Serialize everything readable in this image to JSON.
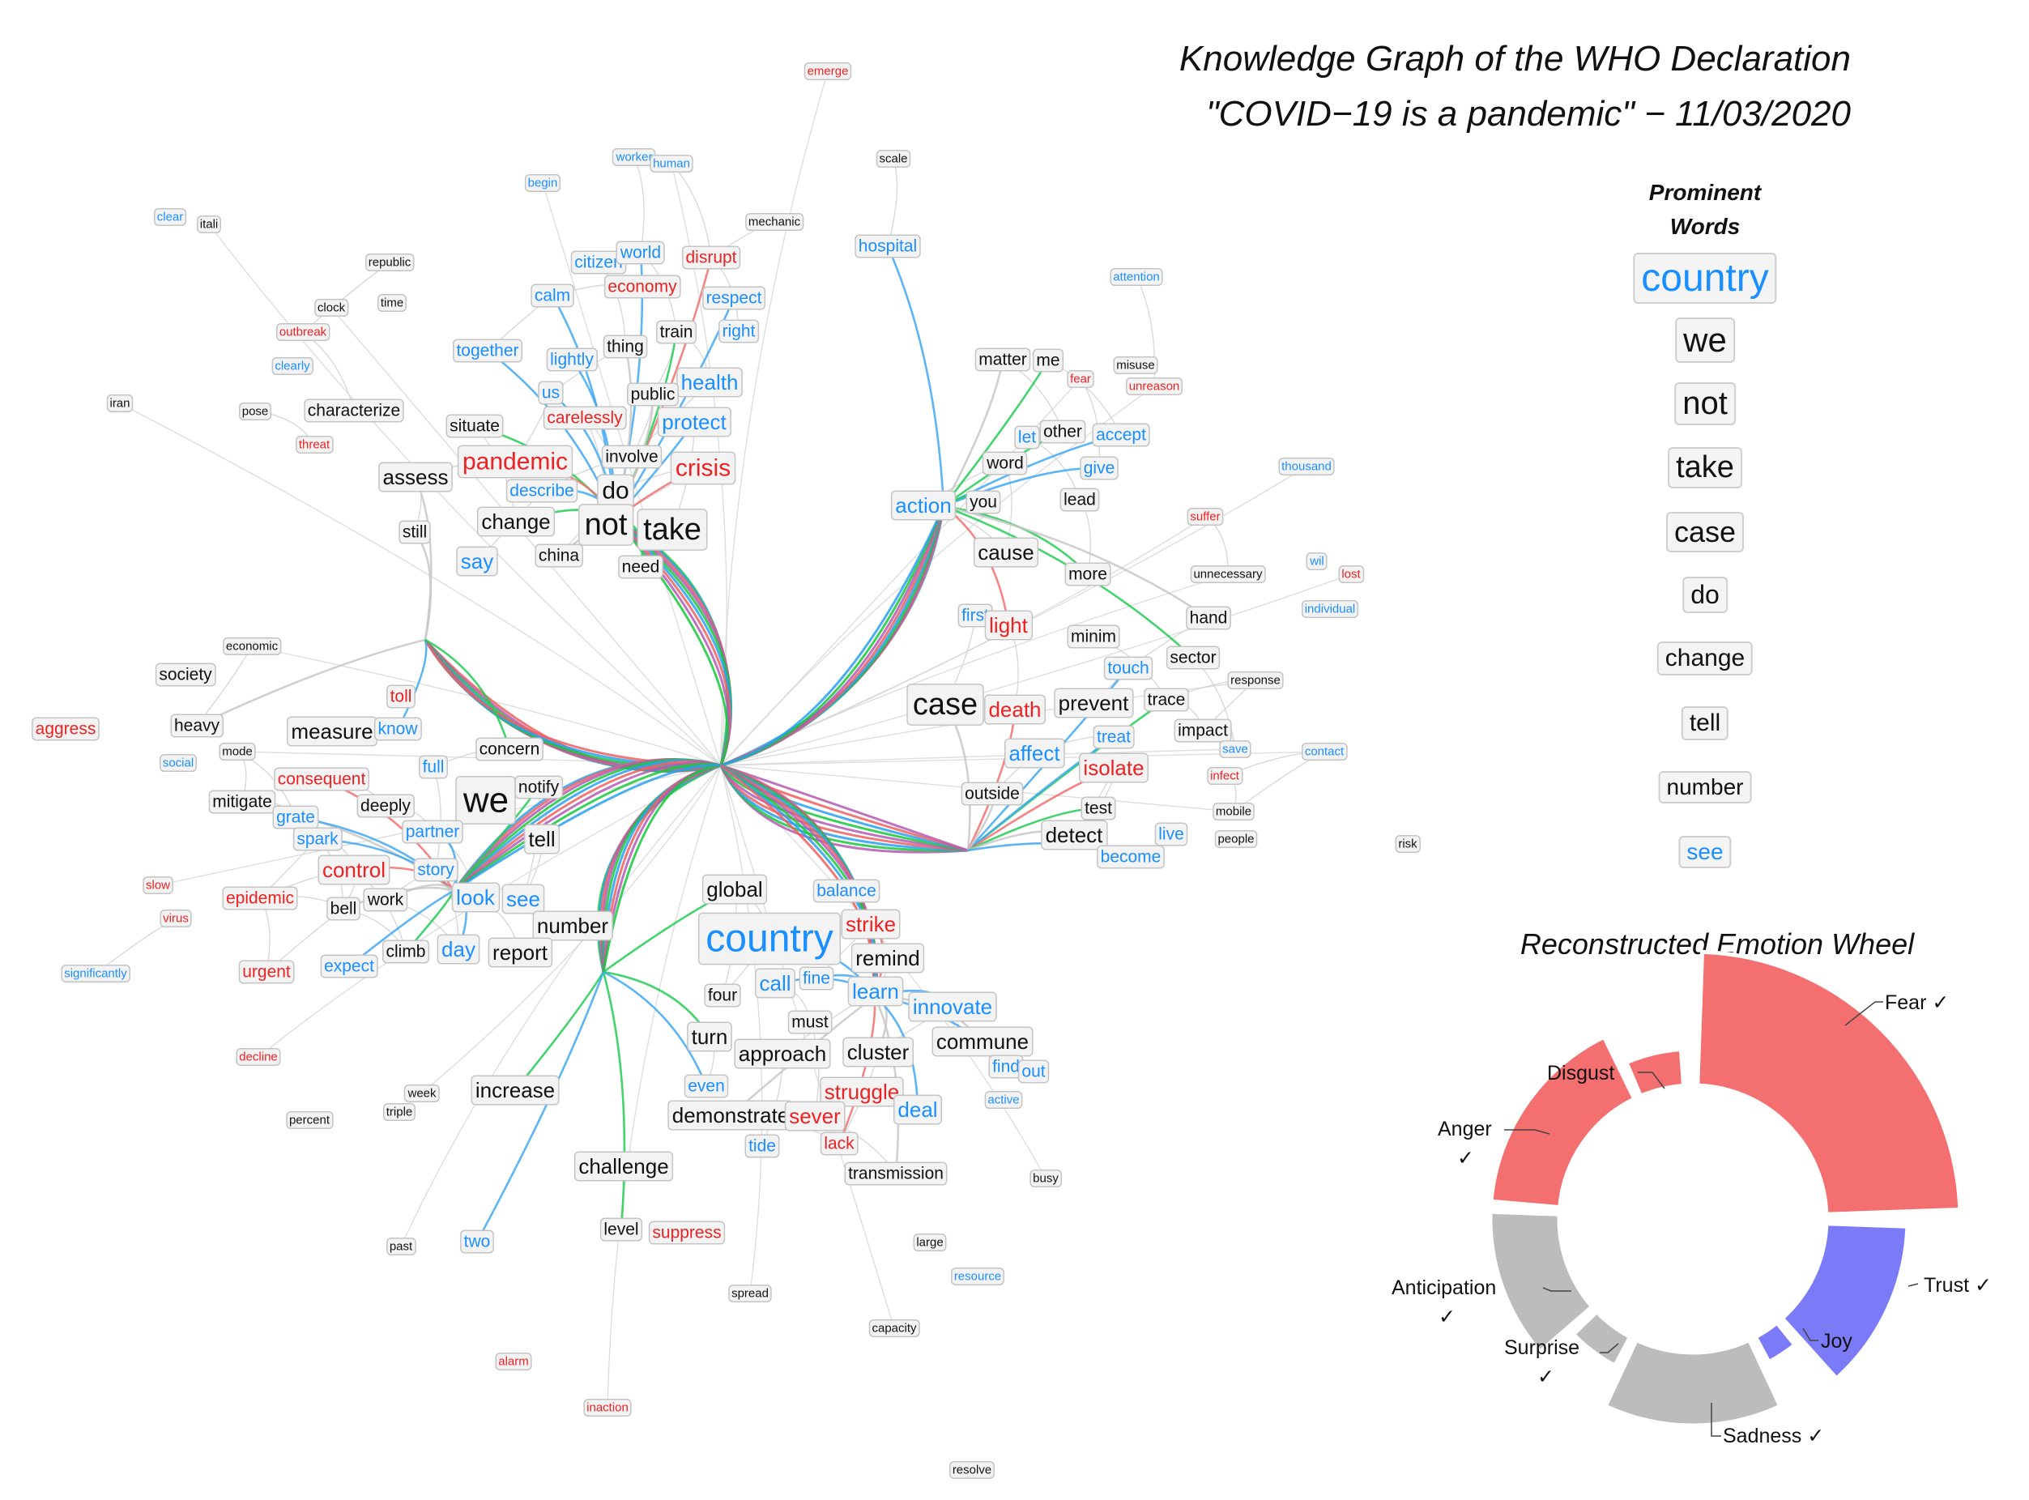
{
  "title_line1": "Knowledge Graph of the WHO Declaration",
  "title_line2": "\"COVID−19 is a pandemic\"  − 11/03/2020",
  "prominent": {
    "heading_line1": "Prominent",
    "heading_line2": "Words",
    "words": [
      "country",
      "we",
      "not",
      "take",
      "case",
      "do",
      "change",
      "tell",
      "number",
      "see"
    ],
    "colors": [
      "#1a8fff",
      "#111111",
      "#111111",
      "#111111",
      "#111111",
      "#111111",
      "#111111",
      "#111111",
      "#111111",
      "#1a8fff"
    ]
  },
  "wheel": {
    "title": "Reconstructed Emotion Wheel",
    "labels": {
      "fear": "Fear ✓",
      "disgust": "Disgust",
      "anger": "Anger",
      "anger_check": "✓",
      "trust": "Trust ✓",
      "joy": "Joy",
      "anticipation": "Anticipation",
      "anticipation_check": "✓",
      "surprise": "Surprise",
      "surprise_check": "✓",
      "sadness": "Sadness ✓"
    },
    "colors": {
      "negative": "#f46f6f",
      "positive": "#7b7bf8",
      "neutral": "#bcbcbc"
    }
  },
  "graph": {
    "colors": {
      "neutral": "#111111",
      "positive": "#1a8fff",
      "negative": "#ee2222"
    },
    "nodes": [
      [
        "emerge",
        "r",
        1022,
        88,
        0
      ],
      [
        "worker",
        "b",
        783,
        194,
        0
      ],
      [
        "human",
        "b",
        829,
        202,
        0
      ],
      [
        "scale",
        "k",
        1103,
        196,
        0
      ],
      [
        "begin",
        "b",
        670,
        226,
        0
      ],
      [
        "clear",
        "b",
        210,
        268,
        0
      ],
      [
        "itali",
        "k",
        258,
        277,
        0
      ],
      [
        "mechanic",
        "k",
        956,
        274,
        0
      ],
      [
        "hospital",
        "b",
        1096,
        304,
        1
      ],
      [
        "republic",
        "k",
        481,
        324,
        0
      ],
      [
        "citizen",
        "b",
        739,
        324,
        1
      ],
      [
        "world",
        "b",
        791,
        312,
        1
      ],
      [
        "disrupt",
        "r",
        878,
        318,
        1
      ],
      [
        "economy",
        "r",
        793,
        354,
        1
      ],
      [
        "respect",
        "b",
        906,
        368,
        1
      ],
      [
        "attention",
        "b",
        1403,
        342,
        0
      ],
      [
        "clock",
        "k",
        409,
        380,
        0
      ],
      [
        "time",
        "k",
        484,
        374,
        0
      ],
      [
        "calm",
        "b",
        682,
        365,
        1
      ],
      [
        "outbreak",
        "r",
        374,
        410,
        0
      ],
      [
        "thing",
        "k",
        772,
        428,
        1
      ],
      [
        "train",
        "k",
        835,
        410,
        1
      ],
      [
        "right",
        "b",
        912,
        409,
        1
      ],
      [
        "together",
        "b",
        602,
        433,
        1
      ],
      [
        "lightly",
        "b",
        706,
        444,
        1
      ],
      [
        "clearly",
        "b",
        361,
        452,
        0
      ],
      [
        "matter",
        "k",
        1238,
        444,
        1
      ],
      [
        "me",
        "k",
        1294,
        445,
        1
      ],
      [
        "fear",
        "r",
        1334,
        468,
        0
      ],
      [
        "misuse",
        "k",
        1402,
        451,
        0
      ],
      [
        "unreason",
        "r",
        1425,
        477,
        0
      ],
      [
        "health",
        "b",
        876,
        472,
        2
      ],
      [
        "iran",
        "k",
        148,
        498,
        0
      ],
      [
        "pose",
        "k",
        315,
        508,
        0
      ],
      [
        "characterize",
        "k",
        437,
        507,
        1
      ],
      [
        "us",
        "b",
        680,
        485,
        1
      ],
      [
        "public",
        "k",
        806,
        487,
        1
      ],
      [
        "carelessly",
        "r",
        722,
        516,
        1
      ],
      [
        "protect",
        "b",
        857,
        521,
        2
      ],
      [
        "situate",
        "k",
        586,
        526,
        1
      ],
      [
        "let",
        "b",
        1268,
        540,
        1
      ],
      [
        "other",
        "k",
        1312,
        533,
        1
      ],
      [
        "accept",
        "b",
        1384,
        537,
        1
      ],
      [
        "threat",
        "r",
        388,
        549,
        0
      ],
      [
        "thousand",
        "b",
        1613,
        576,
        0
      ],
      [
        "pandemic",
        "r",
        636,
        570,
        3
      ],
      [
        "involve",
        "k",
        780,
        564,
        1
      ],
      [
        "crisis",
        "r",
        868,
        578,
        3
      ],
      [
        "give",
        "b",
        1357,
        578,
        1
      ],
      [
        "word",
        "k",
        1241,
        572,
        1
      ],
      [
        "assess",
        "k",
        513,
        589,
        2
      ],
      [
        "describe",
        "b",
        669,
        606,
        1
      ],
      [
        "do",
        "k",
        760,
        606,
        3
      ],
      [
        "you",
        "k",
        1214,
        620,
        1
      ],
      [
        "action",
        "b",
        1140,
        624,
        2
      ],
      [
        "lead",
        "k",
        1333,
        617,
        1
      ],
      [
        "suffer",
        "r",
        1488,
        638,
        0
      ],
      [
        "not",
        "k",
        748,
        648,
        4
      ],
      [
        "take",
        "k",
        830,
        654,
        4
      ],
      [
        "change",
        "k",
        637,
        644,
        2
      ],
      [
        "still",
        "k",
        512,
        657,
        1
      ],
      [
        "say",
        "b",
        589,
        693,
        2
      ],
      [
        "china",
        "k",
        690,
        686,
        1
      ],
      [
        "need",
        "k",
        791,
        700,
        1
      ],
      [
        "cause",
        "k",
        1242,
        682,
        2
      ],
      [
        "more",
        "k",
        1343,
        709,
        1
      ],
      [
        "unnecessary",
        "k",
        1516,
        709,
        0
      ],
      [
        "wil",
        "b",
        1626,
        693,
        0
      ],
      [
        "lost",
        "r",
        1668,
        709,
        0
      ],
      [
        "individual",
        "b",
        1642,
        752,
        0
      ],
      [
        "first",
        "b",
        1204,
        760,
        1
      ],
      [
        "light",
        "r",
        1245,
        772,
        2
      ],
      [
        "hand",
        "k",
        1492,
        763,
        1
      ],
      [
        "minim",
        "k",
        1350,
        786,
        1
      ],
      [
        "economic",
        "k",
        311,
        798,
        0
      ],
      [
        "sector",
        "k",
        1473,
        812,
        1
      ],
      [
        "society",
        "k",
        229,
        833,
        1
      ],
      [
        "touch",
        "b",
        1393,
        825,
        1
      ],
      [
        "response",
        "k",
        1550,
        840,
        0
      ],
      [
        "toll",
        "r",
        495,
        860,
        1
      ],
      [
        "case",
        "k",
        1167,
        870,
        4
      ],
      [
        "death",
        "r",
        1253,
        876,
        2
      ],
      [
        "prevent",
        "k",
        1350,
        868,
        2
      ],
      [
        "trace",
        "k",
        1440,
        864,
        1
      ],
      [
        "heavy",
        "k",
        243,
        896,
        1
      ],
      [
        "measure",
        "k",
        410,
        903,
        2
      ],
      [
        "know",
        "b",
        491,
        900,
        1
      ],
      [
        "concern",
        "k",
        629,
        925,
        1
      ],
      [
        "impact",
        "k",
        1485,
        902,
        1
      ],
      [
        "treat",
        "b",
        1375,
        910,
        1
      ],
      [
        "save",
        "b",
        1525,
        925,
        0
      ],
      [
        "aggress",
        "r",
        81,
        900,
        1
      ],
      [
        "mode",
        "k",
        293,
        928,
        0
      ],
      [
        "social",
        "b",
        220,
        942,
        0
      ],
      [
        "affect",
        "b",
        1277,
        930,
        2
      ],
      [
        "isolate",
        "r",
        1375,
        948,
        2
      ],
      [
        "contact",
        "b",
        1635,
        928,
        0
      ],
      [
        "full",
        "b",
        535,
        947,
        1
      ],
      [
        "consequent",
        "r",
        397,
        962,
        1
      ],
      [
        "notify",
        "k",
        665,
        972,
        1
      ],
      [
        "we",
        "k",
        600,
        988,
        5
      ],
      [
        "infect",
        "r",
        1512,
        958,
        0
      ],
      [
        "mitigate",
        "k",
        299,
        990,
        1
      ],
      [
        "deeply",
        "k",
        476,
        995,
        1
      ],
      [
        "outside",
        "k",
        1225,
        980,
        1
      ],
      [
        "test",
        "k",
        1356,
        998,
        1
      ],
      [
        "mobile",
        "k",
        1523,
        1002,
        0
      ],
      [
        "grate",
        "b",
        365,
        1009,
        1
      ],
      [
        "partner",
        "b",
        534,
        1027,
        1
      ],
      [
        "tell",
        "k",
        669,
        1036,
        2
      ],
      [
        "detect",
        "k",
        1326,
        1031,
        2
      ],
      [
        "spark",
        "b",
        392,
        1036,
        1
      ],
      [
        "live",
        "b",
        1446,
        1030,
        1
      ],
      [
        "people",
        "k",
        1526,
        1036,
        0
      ],
      [
        "become",
        "b",
        1396,
        1058,
        1
      ],
      [
        "risk",
        "k",
        1738,
        1042,
        0
      ],
      [
        "control",
        "r",
        437,
        1074,
        2
      ],
      [
        "story",
        "b",
        538,
        1074,
        1
      ],
      [
        "slow",
        "r",
        195,
        1093,
        0
      ],
      [
        "global",
        "k",
        907,
        1098,
        2
      ],
      [
        "balance",
        "b",
        1045,
        1100,
        1
      ],
      [
        "epidemic",
        "r",
        321,
        1109,
        1
      ],
      [
        "work",
        "k",
        476,
        1111,
        1
      ],
      [
        "look",
        "b",
        587,
        1108,
        2
      ],
      [
        "see",
        "b",
        646,
        1110,
        2
      ],
      [
        "virus",
        "r",
        217,
        1134,
        0
      ],
      [
        "bell",
        "k",
        424,
        1122,
        1
      ],
      [
        "number",
        "k",
        707,
        1143,
        2
      ],
      [
        "strike",
        "r",
        1075,
        1141,
        2
      ],
      [
        "country",
        "b",
        950,
        1159,
        6
      ],
      [
        "remind",
        "k",
        1096,
        1183,
        2
      ],
      [
        "climb",
        "k",
        501,
        1175,
        1
      ],
      [
        "day",
        "b",
        566,
        1172,
        2
      ],
      [
        "report",
        "k",
        642,
        1176,
        2
      ],
      [
        "expect",
        "b",
        431,
        1193,
        1
      ],
      [
        "significantly",
        "b",
        118,
        1202,
        0
      ],
      [
        "urgent",
        "r",
        329,
        1200,
        1
      ],
      [
        "call",
        "b",
        957,
        1214,
        2
      ],
      [
        "fine",
        "b",
        1008,
        1208,
        1
      ],
      [
        "four",
        "k",
        892,
        1229,
        1
      ],
      [
        "learn",
        "b",
        1081,
        1224,
        2
      ],
      [
        "innovate",
        "b",
        1176,
        1243,
        2
      ],
      [
        "must",
        "k",
        1000,
        1262,
        1
      ],
      [
        "turn",
        "k",
        876,
        1280,
        2
      ],
      [
        "commune",
        "k",
        1213,
        1286,
        2
      ],
      [
        "approach",
        "k",
        966,
        1301,
        2
      ],
      [
        "cluster",
        "k",
        1084,
        1299,
        2
      ],
      [
        "find",
        "b",
        1242,
        1317,
        1
      ],
      [
        "out",
        "b",
        1276,
        1323,
        1
      ],
      [
        "increase",
        "k",
        636,
        1346,
        2
      ],
      [
        "decline",
        "r",
        319,
        1305,
        0
      ],
      [
        "week",
        "k",
        521,
        1350,
        0
      ],
      [
        "triple",
        "k",
        493,
        1373,
        0
      ],
      [
        "even",
        "b",
        872,
        1341,
        1
      ],
      [
        "struggle",
        "r",
        1064,
        1348,
        2
      ],
      [
        "active",
        "b",
        1239,
        1358,
        0
      ],
      [
        "demonstrate",
        "k",
        902,
        1377,
        2
      ],
      [
        "sever",
        "r",
        1006,
        1378,
        2
      ],
      [
        "deal",
        "b",
        1133,
        1370,
        2
      ],
      [
        "percent",
        "k",
        382,
        1383,
        0
      ],
      [
        "tide",
        "b",
        941,
        1415,
        1
      ],
      [
        "lack",
        "r",
        1036,
        1412,
        1
      ],
      [
        "transmission",
        "k",
        1106,
        1449,
        1
      ],
      [
        "challenge",
        "k",
        770,
        1440,
        2
      ],
      [
        "busy",
        "k",
        1291,
        1455,
        0
      ],
      [
        "level",
        "k",
        767,
        1518,
        1
      ],
      [
        "suppress",
        "r",
        848,
        1522,
        1
      ],
      [
        "two",
        "b",
        589,
        1533,
        1
      ],
      [
        "past",
        "k",
        495,
        1539,
        0
      ],
      [
        "large",
        "k",
        1148,
        1534,
        0
      ],
      [
        "spread",
        "k",
        926,
        1597,
        0
      ],
      [
        "resource",
        "b",
        1207,
        1576,
        0
      ],
      [
        "capacity",
        "k",
        1104,
        1640,
        0
      ],
      [
        "alarm",
        "r",
        634,
        1681,
        0
      ],
      [
        "inaction",
        "r",
        750,
        1738,
        0
      ],
      [
        "resolve",
        "k",
        1200,
        1815,
        0
      ]
    ]
  }
}
